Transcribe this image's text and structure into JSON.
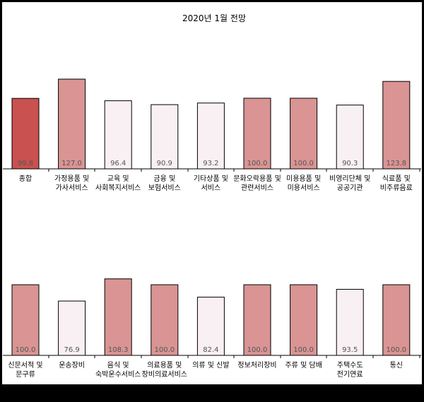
{
  "chart_data": {
    "type": "bar",
    "title": "2020년 1월 전망",
    "colors": {
      "highlight": "#c9514f",
      "above": "#d99493",
      "below": "#f8f0f2"
    },
    "panels": [
      {
        "categories": [
          [
            "종합"
          ],
          [
            "가정용품 및",
            "가사서비스"
          ],
          [
            "교육 및",
            "사회복지서비스"
          ],
          [
            "금융 및",
            "보험서비스"
          ],
          [
            "기타상품 및",
            "서비스"
          ],
          [
            "문화오락용품 및",
            "관련서비스"
          ],
          [
            "미용용품 및",
            "미용서비스"
          ],
          [
            "비영리단체 및",
            "공공기관"
          ],
          [
            "식료품 및",
            "비주류음료"
          ]
        ],
        "values": [
          99.8,
          127.0,
          96.4,
          90.9,
          93.2,
          100.0,
          100.0,
          90.3,
          123.8
        ],
        "value_labels": [
          "99.8",
          "127.0",
          "96.4",
          "90.9",
          "93.2",
          "100.0",
          "100.0",
          "90.3",
          "123.8"
        ],
        "fills": [
          "highlight",
          "above",
          "below",
          "below",
          "below",
          "above",
          "above",
          "below",
          "above"
        ]
      },
      {
        "categories": [
          [
            "신문서적 및",
            "문구류"
          ],
          [
            "운송장비"
          ],
          [
            "음식 및",
            "숙박운수서비스"
          ],
          [
            "의료용품 및",
            "장비의료서비스"
          ],
          [
            "의류 및 신발"
          ],
          [
            "정보처리장비"
          ],
          [
            "주류 및 담배"
          ],
          [
            "주택수도",
            "전기연료"
          ],
          [
            "통신"
          ]
        ],
        "values": [
          100.0,
          76.9,
          108.3,
          100.0,
          82.4,
          100.0,
          100.0,
          93.5,
          100.0
        ],
        "value_labels": [
          "100.0",
          "76.9",
          "108.3",
          "100.0",
          "82.4",
          "100.0",
          "100.0",
          "93.5",
          "100.0"
        ],
        "fills": [
          "above",
          "below",
          "above",
          "above",
          "below",
          "above",
          "above",
          "below",
          "above"
        ]
      }
    ]
  }
}
